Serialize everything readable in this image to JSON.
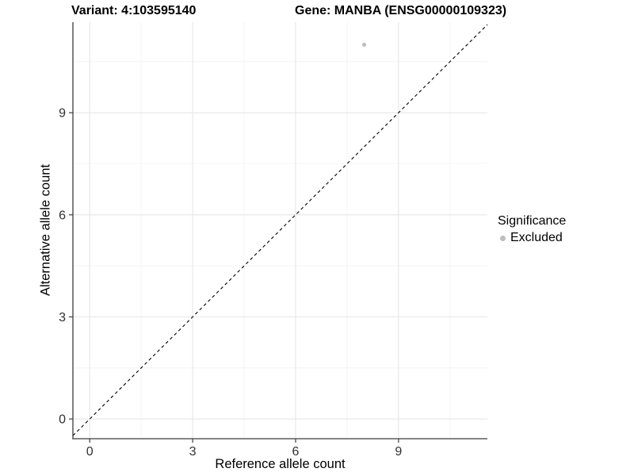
{
  "titles": {
    "variant": "Variant: 4:103595140",
    "gene": "Gene: MANBA (ENSG00000109323)"
  },
  "axes": {
    "x": {
      "label": "Reference allele count"
    },
    "y": {
      "label": "Alternative allele count"
    }
  },
  "legend": {
    "title": "Significance",
    "items": [
      {
        "label": "Excluded",
        "color": "#bdbdbd"
      }
    ]
  },
  "colors": {
    "point": "#bdbdbd",
    "grid_major": "#e8e8e8",
    "grid_minor": "#f4f4f4",
    "axis_line": "#3c3c3c",
    "tick_text": "#303030",
    "reference_line": "#000000"
  },
  "chart_data": {
    "type": "scatter",
    "title": "Variant: 4:103595140 | Gene: MANBA (ENSG00000109323)",
    "xlabel": "Reference allele count",
    "ylabel": "Alternative allele count",
    "xlim": [
      -0.49,
      11.59
    ],
    "ylim": [
      -0.58,
      11.66
    ],
    "x_ticks": [
      0,
      3,
      6,
      9
    ],
    "y_ticks": [
      0,
      3,
      6,
      9
    ],
    "x_minor_ticks": [
      1.5,
      4.5,
      7.5,
      10.5
    ],
    "y_minor_ticks": [
      1.5,
      4.5,
      7.5,
      10.5
    ],
    "grid": true,
    "legend_position": "right",
    "series": [
      {
        "name": "Excluded",
        "color": "#bdbdbd",
        "points": [
          [
            8,
            11
          ]
        ],
        "point_radius": 2.6
      }
    ],
    "reference_line": {
      "type": "identity",
      "equation": "y = x",
      "linetype": "dashed",
      "color": "#000000"
    }
  }
}
